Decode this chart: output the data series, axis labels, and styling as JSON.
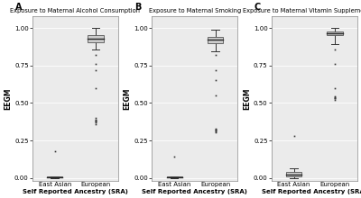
{
  "panels": [
    {
      "label": "A",
      "title": "Exposure to Maternal Alcohol Consumption",
      "ylabel": "EEGM",
      "xlabel": "Self Reported Ancestry (SRA)",
      "xtick_labels": [
        "East Asian",
        "European"
      ],
      "east_asian": {
        "median": 0.005,
        "q1": 0.002,
        "q3": 0.008,
        "whisker_low": 0.0,
        "whisker_high": 0.012,
        "outliers": [
          0.18
        ]
      },
      "european": {
        "median": 0.93,
        "q1": 0.905,
        "q3": 0.95,
        "whisker_low": 0.855,
        "whisker_high": 1.0,
        "outliers": [
          0.36,
          0.37,
          0.375,
          0.38,
          0.385,
          0.39,
          0.4,
          0.6,
          0.72,
          0.76,
          0.82
        ]
      }
    },
    {
      "label": "B",
      "title": "Exposure to Maternal Smoking",
      "ylabel": "EEGM",
      "xlabel": "Self Reported Ancestry (SRA)",
      "xtick_labels": [
        "East Asian",
        "European"
      ],
      "east_asian": {
        "median": 0.005,
        "q1": 0.002,
        "q3": 0.008,
        "whisker_low": 0.0,
        "whisker_high": 0.012,
        "outliers": [
          0.14
        ]
      },
      "european": {
        "median": 0.92,
        "q1": 0.9,
        "q3": 0.94,
        "whisker_low": 0.845,
        "whisker_high": 0.99,
        "outliers": [
          0.305,
          0.31,
          0.315,
          0.32,
          0.325,
          0.33,
          0.55,
          0.65,
          0.72,
          0.82
        ]
      }
    },
    {
      "label": "C",
      "title": "Exposure to Maternal Vitamin Supplementation",
      "ylabel": "EEGM",
      "xlabel": "Self Reported Ancestry (SRA)",
      "xtick_labels": [
        "East Asian",
        "European"
      ],
      "east_asian": {
        "median": 0.02,
        "q1": 0.01,
        "q3": 0.04,
        "whisker_low": 0.0,
        "whisker_high": 0.065,
        "outliers": [
          0.28
        ]
      },
      "european": {
        "median": 0.965,
        "q1": 0.952,
        "q3": 0.975,
        "whisker_low": 0.895,
        "whisker_high": 1.0,
        "outliers": [
          0.52,
          0.53,
          0.535,
          0.54,
          0.545,
          0.6,
          0.76,
          0.855
        ]
      }
    }
  ],
  "bg_color": "#ebebeb",
  "box_facecolor": "#cccccc",
  "box_edgecolor": "#555555",
  "median_color": "#222222",
  "whisker_color": "#333333",
  "outlier_color": "#333333",
  "ylim": [
    -0.02,
    1.08
  ],
  "yticks": [
    0.0,
    0.25,
    0.5,
    0.75,
    1.0
  ],
  "ytick_labels": [
    "0.00",
    "0.25",
    "0.50",
    "0.75",
    "1.00"
  ]
}
